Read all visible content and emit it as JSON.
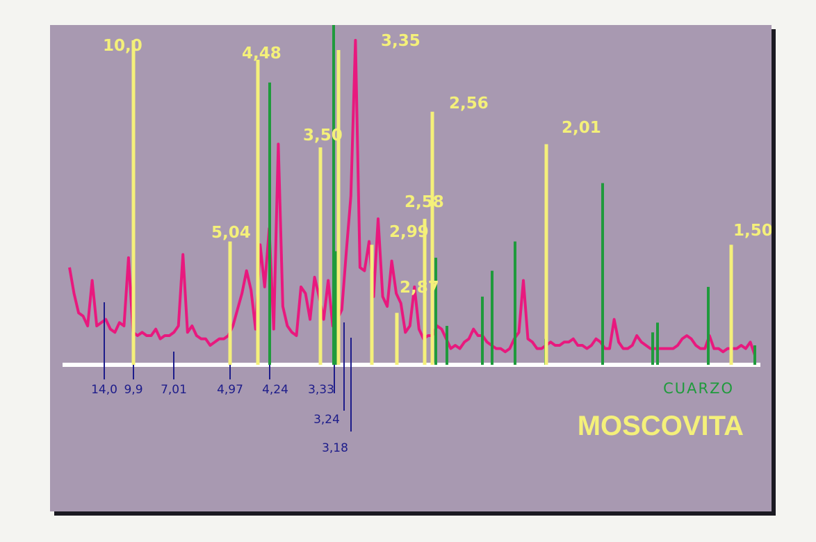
{
  "chart_data": {
    "type": "line",
    "title": "MOSCOVITA",
    "legend": [
      "CUARZO",
      "MOSCOVITA"
    ],
    "colors": {
      "background": "#a899b1",
      "trace": "#e8197e",
      "moscovita": "#f4f07a",
      "cuarzo": "#1f9a3c",
      "reference": "#1d1c8a",
      "baseline": "#ffffff"
    },
    "moscovita_peaks": [
      {
        "d": "10,0",
        "rel": 1.0
      },
      {
        "d": "5,04",
        "rel": 0.38
      },
      {
        "d": "4,48",
        "rel": 0.94
      },
      {
        "d": "3,50",
        "rel": 0.67
      },
      {
        "d": "3,35",
        "rel": 0.97
      },
      {
        "d": "2,99",
        "rel": 0.37
      },
      {
        "d": "2,87",
        "rel": 0.16
      },
      {
        "d": "2,58",
        "rel": 0.45
      },
      {
        "d": "2,56",
        "rel": 0.78
      },
      {
        "d": "2,01",
        "rel": 0.68
      },
      {
        "d": "1,50",
        "rel": 0.37
      }
    ],
    "cuarzo_peaks": [
      {
        "rel": 0.87
      },
      {
        "rel": 1.05
      },
      {
        "rel": 0.35
      },
      {
        "rel": 0.33
      },
      {
        "rel": 0.12
      },
      {
        "rel": 0.21
      },
      {
        "rel": 0.29
      },
      {
        "rel": 0.38
      },
      {
        "rel": 0.08
      },
      {
        "rel": 0.56
      },
      {
        "rel": 0.1
      },
      {
        "rel": 0.13
      },
      {
        "rel": 0.24
      },
      {
        "rel": 0.06
      }
    ],
    "reference_lines": [
      {
        "d": "14,0"
      },
      {
        "d": "9,9"
      },
      {
        "d": "7,01"
      },
      {
        "d": "4,97"
      },
      {
        "d": "4,24"
      },
      {
        "d": "3,33"
      },
      {
        "d": "3,24"
      },
      {
        "d": "3,18"
      }
    ],
    "trace": [
      0.3,
      0.22,
      0.16,
      0.15,
      0.12,
      0.26,
      0.12,
      0.13,
      0.14,
      0.11,
      0.1,
      0.13,
      0.12,
      0.33,
      0.1,
      0.09,
      0.1,
      0.09,
      0.09,
      0.11,
      0.08,
      0.09,
      0.09,
      0.1,
      0.12,
      0.34,
      0.1,
      0.12,
      0.09,
      0.08,
      0.08,
      0.06,
      0.07,
      0.08,
      0.08,
      0.09,
      0.12,
      0.17,
      0.22,
      0.29,
      0.23,
      0.11,
      0.37,
      0.24,
      0.42,
      0.11,
      0.68,
      0.18,
      0.12,
      0.1,
      0.09,
      0.24,
      0.22,
      0.14,
      0.27,
      0.21,
      0.14,
      0.26,
      0.12,
      0.14,
      0.17,
      0.35,
      0.52,
      1.0,
      0.3,
      0.29,
      0.38,
      0.21,
      0.45,
      0.21,
      0.18,
      0.32,
      0.22,
      0.19,
      0.1,
      0.12,
      0.24,
      0.11,
      0.08,
      0.09,
      0.09,
      0.12,
      0.11,
      0.08,
      0.05,
      0.06,
      0.05,
      0.07,
      0.08,
      0.11,
      0.09,
      0.09,
      0.07,
      0.06,
      0.05,
      0.05,
      0.04,
      0.05,
      0.08,
      0.1,
      0.26,
      0.08,
      0.07,
      0.05,
      0.05,
      0.06,
      0.07,
      0.06,
      0.06,
      0.07,
      0.07,
      0.08,
      0.06,
      0.06,
      0.05,
      0.06,
      0.08,
      0.07,
      0.05,
      0.05,
      0.14,
      0.07,
      0.05,
      0.05,
      0.06,
      0.09,
      0.07,
      0.06,
      0.05,
      0.05,
      0.05,
      0.05,
      0.05,
      0.05,
      0.06,
      0.08,
      0.09,
      0.08,
      0.06,
      0.05,
      0.05,
      0.09,
      0.05,
      0.05,
      0.04,
      0.05,
      0.05,
      0.05,
      0.06,
      0.05,
      0.07,
      0.03
    ]
  }
}
